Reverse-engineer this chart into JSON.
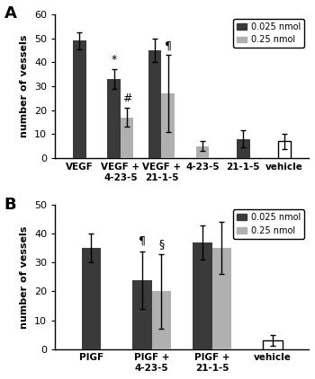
{
  "panel_A": {
    "groups": [
      "VEGF",
      "VEGF +\n4-23-5",
      "VEGF +\n21-1-5",
      "4-23-5",
      "21-1-5",
      "vehicle"
    ],
    "dark_values": [
      49,
      33,
      45,
      null,
      8,
      null
    ],
    "light_values": [
      null,
      17,
      27,
      5,
      null,
      7
    ],
    "dark_errors": [
      3.5,
      4,
      5,
      null,
      3.5,
      null
    ],
    "light_errors": [
      null,
      4,
      16,
      2,
      null,
      3
    ],
    "annotations_dark": [
      null,
      "*",
      null,
      null,
      null,
      null
    ],
    "annotations_light": [
      null,
      "#",
      "¶",
      null,
      null,
      null
    ],
    "vehicle_index": 5,
    "single_light_indices": [
      3
    ],
    "single_dark_indices": [
      4
    ],
    "ylim": [
      0,
      60
    ],
    "yticks": [
      0,
      10,
      20,
      30,
      40,
      50,
      60
    ],
    "ylabel": "number of vessels",
    "panel_label": "A"
  },
  "panel_B": {
    "groups": [
      "PIGF",
      "PIGF +\n4-23-5",
      "PIGF +\n21-1-5",
      "vehicle"
    ],
    "dark_values": [
      35,
      24,
      37,
      null
    ],
    "light_values": [
      null,
      20,
      35,
      3
    ],
    "dark_errors": [
      5,
      10,
      6,
      null
    ],
    "light_errors": [
      null,
      13,
      9,
      2
    ],
    "annotations_dark": [
      null,
      "¶",
      null,
      null
    ],
    "annotations_light": [
      null,
      "§",
      null,
      null
    ],
    "vehicle_index": 3,
    "single_light_indices": [],
    "single_dark_indices": [],
    "ylim": [
      0,
      50
    ],
    "yticks": [
      0,
      10,
      20,
      30,
      40,
      50
    ],
    "ylabel": "number of vessels",
    "panel_label": "B"
  },
  "dark_color": "#3a3a3a",
  "light_color": "#b0b0b0",
  "bar_width": 0.32,
  "legend_dark_label": "0.025 nmol",
  "legend_light_label": "0.25 nmol"
}
